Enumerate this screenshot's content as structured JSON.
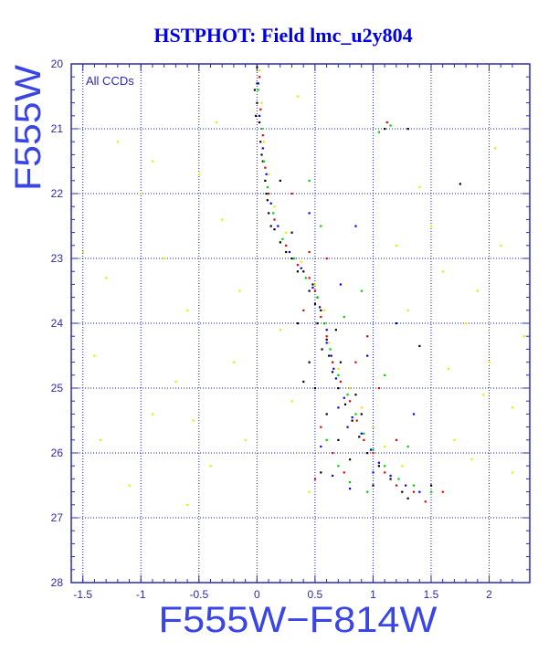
{
  "chart_data": {
    "type": "scatter",
    "title": "HSTPHOT: Field lmc_u2y804",
    "xlabel": "F555W−F814W",
    "ylabel": "F555W",
    "annotation": "All CCDs",
    "xlim": [
      -1.6,
      2.35
    ],
    "ylim": [
      28,
      20
    ],
    "y_inverted": true,
    "grid": true,
    "x_ticks": [
      -1.5,
      -1,
      -0.5,
      0,
      0.5,
      1,
      1.5,
      2
    ],
    "x_tick_labels": [
      "-1.5",
      "-1",
      "-0.5",
      "0",
      "0.5",
      "1",
      "1.5",
      "2"
    ],
    "y_ticks": [
      20,
      21,
      22,
      23,
      24,
      25,
      26,
      27,
      28
    ],
    "y_tick_labels": [
      "20",
      "21",
      "22",
      "23",
      "24",
      "25",
      "26",
      "27",
      "28"
    ],
    "colors": {
      "title": "#0000e6",
      "axis_label": "#3a45e6",
      "axes": "#2a2ab0",
      "grid": "#0a1bd6",
      "ccd_black": "#000000",
      "ccd_red": "#e60000",
      "ccd_green": "#00cc00",
      "ccd_blue": "#0000ee",
      "ccd_yellow": "#eaea00"
    },
    "series": [
      {
        "color_key": "ccd_black",
        "points": [
          [
            0.0,
            20.05
          ],
          [
            0.01,
            20.3
          ],
          [
            0.0,
            20.6
          ],
          [
            0.02,
            20.9
          ],
          [
            0.03,
            21.2
          ],
          [
            0.05,
            21.5
          ],
          [
            0.07,
            21.8
          ],
          [
            0.09,
            22.1
          ],
          [
            0.1,
            22.3
          ],
          [
            0.15,
            22.55
          ],
          [
            0.2,
            22.75
          ],
          [
            0.3,
            23.0
          ],
          [
            0.4,
            23.2
          ],
          [
            0.48,
            23.4
          ],
          [
            0.52,
            23.6
          ],
          [
            0.55,
            23.8
          ],
          [
            0.58,
            24.0
          ],
          [
            0.6,
            24.25
          ],
          [
            0.62,
            24.5
          ],
          [
            0.65,
            24.75
          ],
          [
            0.7,
            25.0
          ],
          [
            0.76,
            25.25
          ],
          [
            0.82,
            25.5
          ],
          [
            0.88,
            25.75
          ],
          [
            0.95,
            26.0
          ],
          [
            1.05,
            26.2
          ],
          [
            1.15,
            26.4
          ],
          [
            1.25,
            26.6
          ],
          [
            0.45,
            24.6
          ],
          [
            0.5,
            25.0
          ],
          [
            0.6,
            25.4
          ],
          [
            0.7,
            25.8
          ],
          [
            0.8,
            26.1
          ],
          [
            -0.02,
            20.4
          ],
          [
            -0.01,
            20.8
          ],
          [
            0.04,
            21.4
          ],
          [
            0.08,
            22.0
          ],
          [
            0.12,
            22.5
          ],
          [
            0.25,
            22.9
          ],
          [
            0.35,
            23.2
          ],
          [
            0.45,
            23.5
          ],
          [
            0.5,
            23.7
          ],
          [
            0.52,
            24.0
          ],
          [
            0.56,
            24.4
          ],
          [
            1.3,
            21.0
          ],
          [
            1.1,
            21.0
          ],
          [
            1.75,
            21.85
          ],
          [
            1.4,
            24.35
          ],
          [
            0.35,
            24.0
          ],
          [
            0.4,
            24.9
          ],
          [
            0.55,
            26.3
          ],
          [
            1.0,
            26.5
          ],
          [
            1.3,
            26.7
          ],
          [
            0.2,
            21.8
          ],
          [
            0.3,
            22.6
          ],
          [
            0.68,
            24.1
          ],
          [
            0.72,
            24.6
          ],
          [
            0.85,
            25.1
          ],
          [
            0.9,
            25.4
          ],
          [
            1.5,
            26.5
          ]
        ]
      },
      {
        "color_key": "ccd_red",
        "points": [
          [
            0.02,
            20.2
          ],
          [
            0.03,
            20.7
          ],
          [
            0.05,
            21.1
          ],
          [
            0.07,
            21.6
          ],
          [
            0.1,
            22.0
          ],
          [
            0.15,
            22.4
          ],
          [
            0.25,
            22.8
          ],
          [
            0.35,
            23.1
          ],
          [
            0.45,
            23.3
          ],
          [
            0.5,
            23.5
          ],
          [
            0.55,
            23.9
          ],
          [
            0.6,
            24.2
          ],
          [
            0.65,
            24.6
          ],
          [
            0.72,
            24.9
          ],
          [
            0.8,
            25.2
          ],
          [
            0.86,
            25.5
          ],
          [
            0.92,
            25.8
          ],
          [
            1.0,
            26.0
          ],
          [
            1.1,
            26.3
          ],
          [
            1.2,
            26.5
          ],
          [
            1.35,
            26.6
          ],
          [
            1.45,
            26.75
          ],
          [
            0.55,
            25.6
          ],
          [
            0.65,
            26.0
          ],
          [
            0.75,
            26.3
          ],
          [
            1.12,
            20.9
          ],
          [
            0.45,
            22.9
          ],
          [
            0.6,
            23.0
          ],
          [
            0.3,
            22.0
          ],
          [
            0.85,
            24.6
          ],
          [
            0.95,
            24.2
          ],
          [
            1.05,
            25.0
          ],
          [
            0.5,
            26.4
          ],
          [
            1.6,
            26.6
          ],
          [
            1.2,
            25.8
          ],
          [
            0.4,
            23.8
          ]
        ]
      },
      {
        "color_key": "ccd_green",
        "points": [
          [
            0.01,
            20.4
          ],
          [
            0.04,
            21.0
          ],
          [
            0.06,
            21.5
          ],
          [
            0.09,
            21.9
          ],
          [
            0.14,
            22.3
          ],
          [
            0.22,
            22.7
          ],
          [
            0.32,
            23.0
          ],
          [
            0.42,
            23.3
          ],
          [
            0.52,
            23.6
          ],
          [
            0.58,
            24.0
          ],
          [
            0.63,
            24.4
          ],
          [
            0.7,
            24.8
          ],
          [
            0.78,
            25.1
          ],
          [
            0.85,
            25.4
          ],
          [
            0.92,
            25.7
          ],
          [
            1.0,
            25.95
          ],
          [
            1.1,
            26.2
          ],
          [
            1.22,
            26.4
          ],
          [
            1.35,
            26.5
          ],
          [
            1.5,
            26.6
          ],
          [
            0.6,
            25.8
          ],
          [
            0.7,
            26.2
          ],
          [
            0.8,
            26.45
          ],
          [
            1.05,
            21.05
          ],
          [
            1.15,
            20.95
          ],
          [
            0.9,
            23.5
          ],
          [
            0.75,
            23.9
          ],
          [
            1.1,
            24.8
          ],
          [
            0.55,
            22.5
          ],
          [
            1.3,
            25.9
          ],
          [
            0.95,
            26.6
          ],
          [
            0.45,
            21.8
          ]
        ]
      },
      {
        "color_key": "ccd_blue",
        "points": [
          [
            0.0,
            20.3
          ],
          [
            0.02,
            20.8
          ],
          [
            0.05,
            21.3
          ],
          [
            0.08,
            21.7
          ],
          [
            0.12,
            22.15
          ],
          [
            0.18,
            22.5
          ],
          [
            0.28,
            22.9
          ],
          [
            0.38,
            23.15
          ],
          [
            0.48,
            23.45
          ],
          [
            0.54,
            23.75
          ],
          [
            0.6,
            24.1
          ],
          [
            0.64,
            24.5
          ],
          [
            0.68,
            24.85
          ],
          [
            0.75,
            25.15
          ],
          [
            0.82,
            25.45
          ],
          [
            0.9,
            25.7
          ],
          [
            0.98,
            25.95
          ],
          [
            1.05,
            26.15
          ],
          [
            1.15,
            26.35
          ],
          [
            1.28,
            26.5
          ],
          [
            1.4,
            26.6
          ],
          [
            0.6,
            24.3
          ],
          [
            0.66,
            24.7
          ],
          [
            0.7,
            25.3
          ],
          [
            0.78,
            25.6
          ],
          [
            0.55,
            25.9
          ],
          [
            0.65,
            26.35
          ],
          [
            0.8,
            26.55
          ],
          [
            1.0,
            26.3
          ],
          [
            0.72,
            23.4
          ],
          [
            0.45,
            22.3
          ],
          [
            1.2,
            24.0
          ],
          [
            0.95,
            24.5
          ],
          [
            1.35,
            25.4
          ],
          [
            0.85,
            22.5
          ]
        ]
      },
      {
        "color_key": "ccd_yellow",
        "points": [
          [
            0.02,
            20.1
          ],
          [
            0.04,
            20.6
          ],
          [
            0.06,
            21.2
          ],
          [
            0.1,
            21.7
          ],
          [
            0.15,
            22.2
          ],
          [
            0.25,
            22.6
          ],
          [
            0.38,
            23.05
          ],
          [
            0.5,
            23.4
          ],
          [
            0.58,
            23.8
          ],
          [
            0.62,
            24.3
          ],
          [
            0.7,
            24.7
          ],
          [
            0.8,
            25.0
          ],
          [
            0.9,
            25.3
          ],
          [
            1.0,
            25.6
          ],
          [
            1.1,
            25.9
          ],
          [
            1.25,
            26.2
          ],
          [
            -1.2,
            21.2
          ],
          [
            -1.0,
            22.0
          ],
          [
            -0.8,
            23.0
          ],
          [
            -0.6,
            23.8
          ],
          [
            -1.4,
            24.5
          ],
          [
            -0.9,
            25.4
          ],
          [
            -0.4,
            26.2
          ],
          [
            -1.1,
            26.5
          ],
          [
            -0.3,
            22.4
          ],
          [
            -0.2,
            24.6
          ],
          [
            -0.7,
            24.9
          ],
          [
            -1.3,
            23.3
          ],
          [
            -0.5,
            21.7
          ],
          [
            -1.5,
            22.9
          ],
          [
            -0.1,
            25.8
          ],
          [
            -0.6,
            26.8
          ],
          [
            1.6,
            23.2
          ],
          [
            1.8,
            24.0
          ],
          [
            2.0,
            24.6
          ],
          [
            2.2,
            25.3
          ],
          [
            1.7,
            25.8
          ],
          [
            2.1,
            22.8
          ],
          [
            1.9,
            23.5
          ],
          [
            2.3,
            24.2
          ],
          [
            1.5,
            22.5
          ],
          [
            1.3,
            23.8
          ],
          [
            1.4,
            21.9
          ],
          [
            2.2,
            26.3
          ],
          [
            1.85,
            26.1
          ],
          [
            -0.35,
            20.9
          ],
          [
            0.3,
            25.2
          ],
          [
            0.2,
            24.1
          ],
          [
            -0.9,
            21.5
          ],
          [
            1.2,
            22.8
          ],
          [
            2.05,
            21.3
          ],
          [
            0.35,
            20.5
          ],
          [
            -1.35,
            25.8
          ],
          [
            -0.15,
            23.5
          ],
          [
            1.65,
            24.7
          ],
          [
            1.95,
            25.1
          ],
          [
            -0.55,
            25.5
          ],
          [
            0.45,
            26.6
          ]
        ]
      }
    ]
  }
}
